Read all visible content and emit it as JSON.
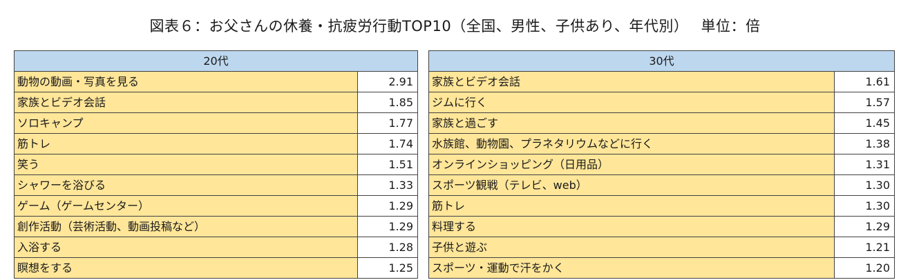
{
  "title": "図表６：お父さんの休養・抗疲労行動TOP10（全国、男性、子供あり、年代別）　 単位：倍",
  "tables": [
    {
      "header": "20代",
      "rows": [
        {
          "item": "動物の動画・写真を見る",
          "value": "2.91"
        },
        {
          "item": "家族とビデオ会話",
          "value": "1.85"
        },
        {
          "item": "ソロキャンプ",
          "value": "1.77"
        },
        {
          "item": "筋トレ",
          "value": "1.74"
        },
        {
          "item": "笑う",
          "value": "1.51"
        },
        {
          "item": "シャワーを浴びる",
          "value": "1.33"
        },
        {
          "item": "ゲーム（ゲームセンター）",
          "value": "1.29"
        },
        {
          "item": "創作活動（芸術活動、動画投稿など）",
          "value": "1.29"
        },
        {
          "item": "入浴する",
          "value": "1.28"
        },
        {
          "item": "瞑想をする",
          "value": "1.25"
        }
      ]
    },
    {
      "header": "30代",
      "rows": [
        {
          "item": "家族とビデオ会話",
          "value": "1.61"
        },
        {
          "item": "ジムに行く",
          "value": "1.57"
        },
        {
          "item": "家族と過ごす",
          "value": "1.45"
        },
        {
          "item": "水族館、動物園、プラネタリウムなどに行く",
          "value": "1.38"
        },
        {
          "item": "オンラインショッピング（日用品）",
          "value": "1.31"
        },
        {
          "item": "スポーツ観戦（テレビ、web）",
          "value": "1.30"
        },
        {
          "item": "筋トレ",
          "value": "1.30"
        },
        {
          "item": "料理する",
          "value": "1.29"
        },
        {
          "item": "子供と遊ぶ",
          "value": "1.21"
        },
        {
          "item": "スポーツ・運動で汗をかく",
          "value": "1.20"
        }
      ]
    }
  ]
}
